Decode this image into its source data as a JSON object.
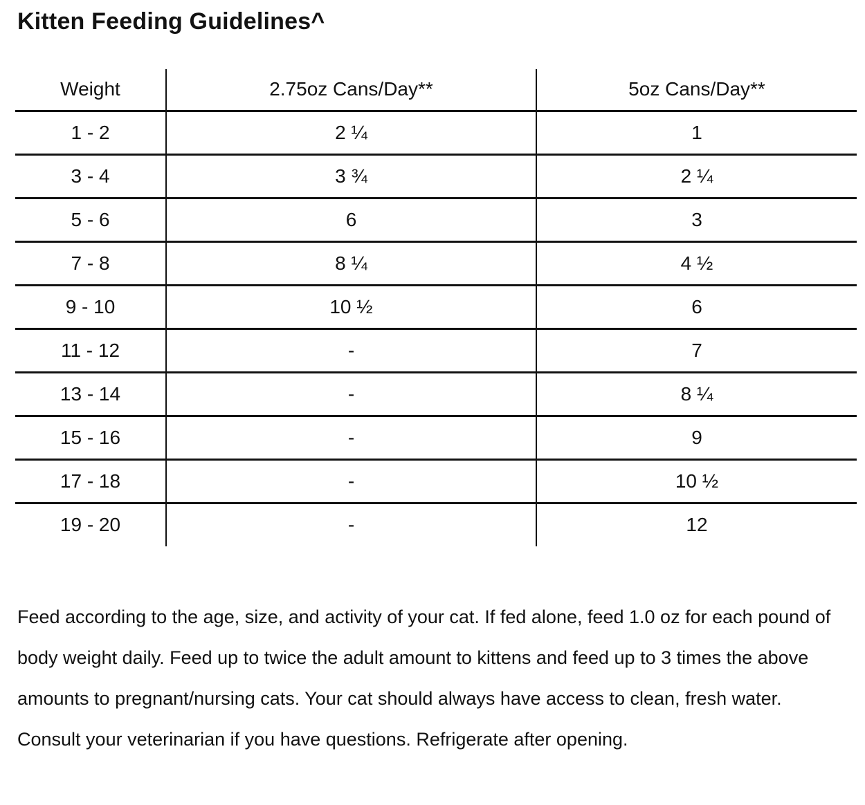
{
  "page": {
    "title": "Kitten Feeding Guidelines^"
  },
  "table": {
    "columns": [
      "Weight",
      "2.75oz Cans/Day**",
      "5oz Cans/Day**"
    ],
    "rows": [
      [
        "1 - 2",
        "2 ¼",
        "1"
      ],
      [
        "3 - 4",
        "3 ¾",
        "2 ¼"
      ],
      [
        "5 - 6",
        "6",
        "3"
      ],
      [
        "7 - 8",
        "8 ¼",
        "4 ½"
      ],
      [
        "9 - 10",
        "10 ½",
        "6"
      ],
      [
        "11 - 12",
        "-",
        "7"
      ],
      [
        "13 - 14",
        "-",
        "8 ¼"
      ],
      [
        "15 - 16",
        "-",
        "9"
      ],
      [
        "17 - 18",
        "-",
        "10 ½"
      ],
      [
        "19 - 20",
        "-",
        "12"
      ]
    ]
  },
  "footer": {
    "text": "Feed according to the age, size, and activity of your cat. If fed alone, feed 1.0 oz for each pound of body weight daily. Feed up to twice the adult amount to kittens and feed up to 3 times the above amounts to pregnant/nursing cats. Your cat should always have access to clean, fresh water. Consult your veterinarian if you have questions. Refrigerate after opening."
  },
  "colors": {
    "text": "#121212",
    "line": "#121212",
    "background": "#ffffff"
  }
}
